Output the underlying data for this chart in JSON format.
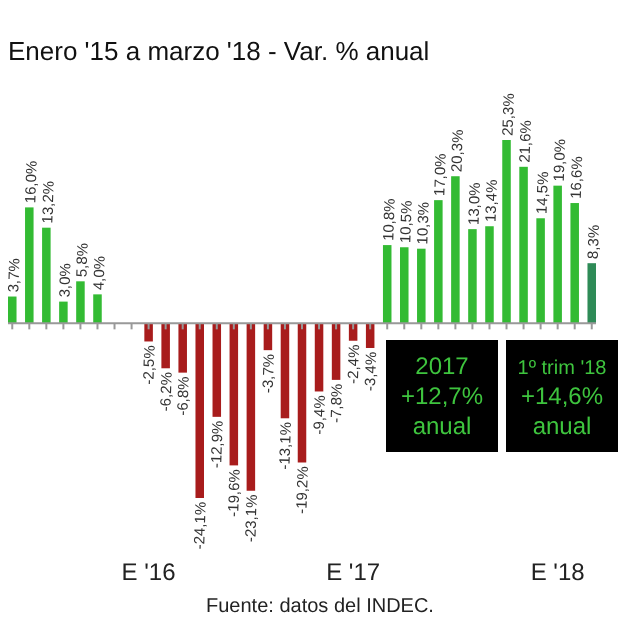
{
  "chart_data": {
    "type": "bar",
    "title": "Enero '15 a marzo '18 - Var. % anual",
    "categories": [
      null,
      null,
      null,
      null,
      null,
      null,
      null,
      null,
      "E '16",
      null,
      null,
      null,
      null,
      null,
      null,
      null,
      null,
      null,
      null,
      null,
      "E '17",
      null,
      null,
      null,
      null,
      null,
      null,
      null,
      null,
      null,
      null,
      null,
      "E '18",
      null,
      null
    ],
    "values": [
      3.7,
      16.0,
      13.2,
      3.0,
      5.8,
      4.0,
      null,
      null,
      -2.5,
      -6.2,
      -6.8,
      -24.1,
      -12.9,
      -19.6,
      -23.1,
      -3.7,
      -13.1,
      -19.2,
      -9.4,
      -7.8,
      -2.4,
      -3.4,
      10.8,
      10.5,
      10.3,
      17.0,
      20.3,
      13.0,
      13.4,
      25.3,
      21.6,
      14.5,
      19.0,
      16.6,
      8.3
    ],
    "value_labels": [
      "3,7%",
      "16,0%",
      "13,2%",
      "3,0%",
      "5,8%",
      "4,0%",
      null,
      null,
      "-2,5%",
      "-6,2%",
      "-6,8%",
      "-24,1%",
      "-12,9%",
      "-19,6%",
      "-23,1%",
      "-3,7%",
      "-13,1%",
      "-19,2%",
      "-9,4%",
      "-7,8%",
      "-2,4%",
      "-3,4%",
      "10,8%",
      "10,5%",
      "10,3%",
      "17,0%",
      "20,3%",
      "13,0%",
      "13,4%",
      "25,3%",
      "21,6%",
      "14,5%",
      "19,0%",
      "16,6%",
      "8,3%"
    ],
    "colors": [
      "#33bb33",
      "#33bb33",
      "#33bb33",
      "#33bb33",
      "#33bb33",
      "#33bb33",
      null,
      null,
      "#a81c1c",
      "#a81c1c",
      "#a81c1c",
      "#a81c1c",
      "#a81c1c",
      "#a81c1c",
      "#a81c1c",
      "#a81c1c",
      "#a81c1c",
      "#a81c1c",
      "#a81c1c",
      "#a81c1c",
      "#a81c1c",
      "#a81c1c",
      "#33bb33",
      "#33bb33",
      "#33bb33",
      "#33bb33",
      "#33bb33",
      "#33bb33",
      "#33bb33",
      "#33bb33",
      "#33bb33",
      "#33bb33",
      "#33bb33",
      "#33bb33",
      "#2e8b57"
    ],
    "annotations": [
      "2017\n+12,7%\nanual",
      "1º trim '18\n+14,6%\nanual",
      "Fuente: datos del INDEC."
    ],
    "tick_labels": "x"
  }
}
